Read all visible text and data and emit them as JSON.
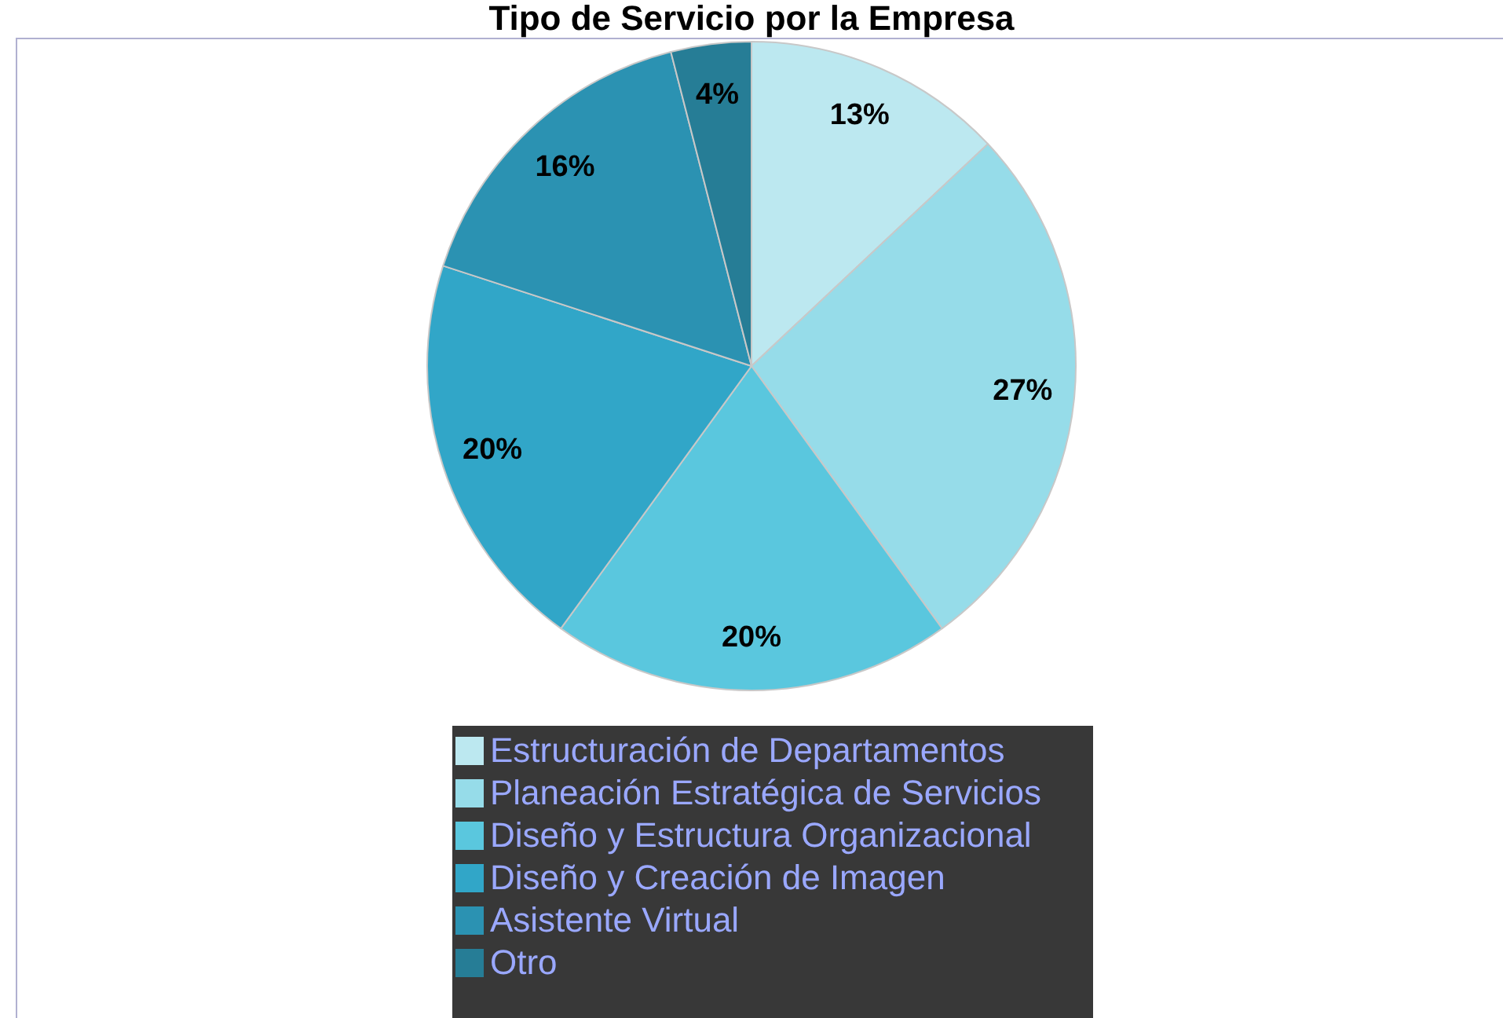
{
  "chart_data": {
    "type": "pie",
    "title": "Tipo de Servicio por la Empresa",
    "categories": [
      "Estructuración de Departamentos",
      "Planeación Estratégica de Servicios",
      "Diseño y Estructura Organizacional",
      "Diseño y Creación de Imagen",
      "Asistente Virtual",
      "Otro"
    ],
    "values": [
      13,
      27,
      20,
      20,
      16,
      4
    ],
    "value_labels": [
      "13%",
      "27%",
      "20%",
      "20%",
      "16%",
      "4%"
    ],
    "colors": [
      "#bce8f0",
      "#96dce9",
      "#5ac7de",
      "#31a6c8",
      "#2b92b2",
      "#267d96"
    ],
    "legend": "bottom"
  }
}
